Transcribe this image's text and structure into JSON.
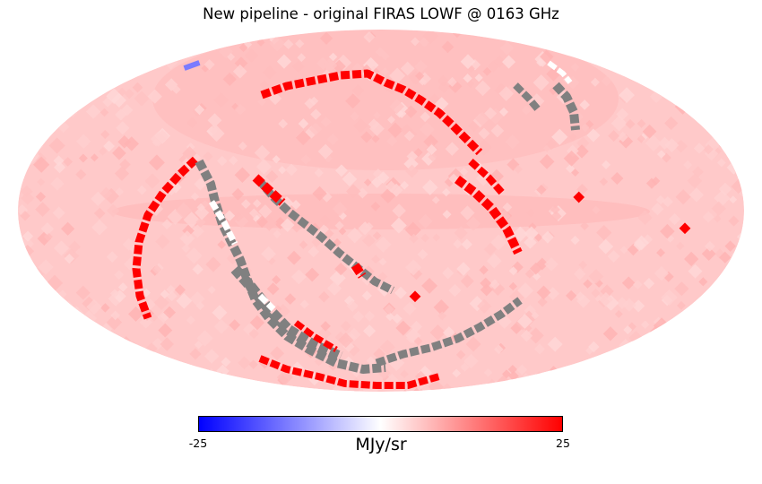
{
  "title": "New pipeline - original FIRAS LOWF @ 0163 GHz",
  "colorbar": {
    "min_label": "-25",
    "max_label": "25",
    "unit_label": "MJy/sr",
    "min_value": -25,
    "max_value": 25,
    "colors": {
      "low": "#0000ff",
      "mid": "#ffffff",
      "high": "#ff0000"
    }
  },
  "map": {
    "projection": "mollweide",
    "background_value": 4,
    "masked_color": "#808080",
    "bad_pixel_track": "ecliptic-like loop of masked (grey) and saturated (red) pixels",
    "saturated_color": "#ff0000",
    "low_value_color": "#7b7bff"
  }
}
